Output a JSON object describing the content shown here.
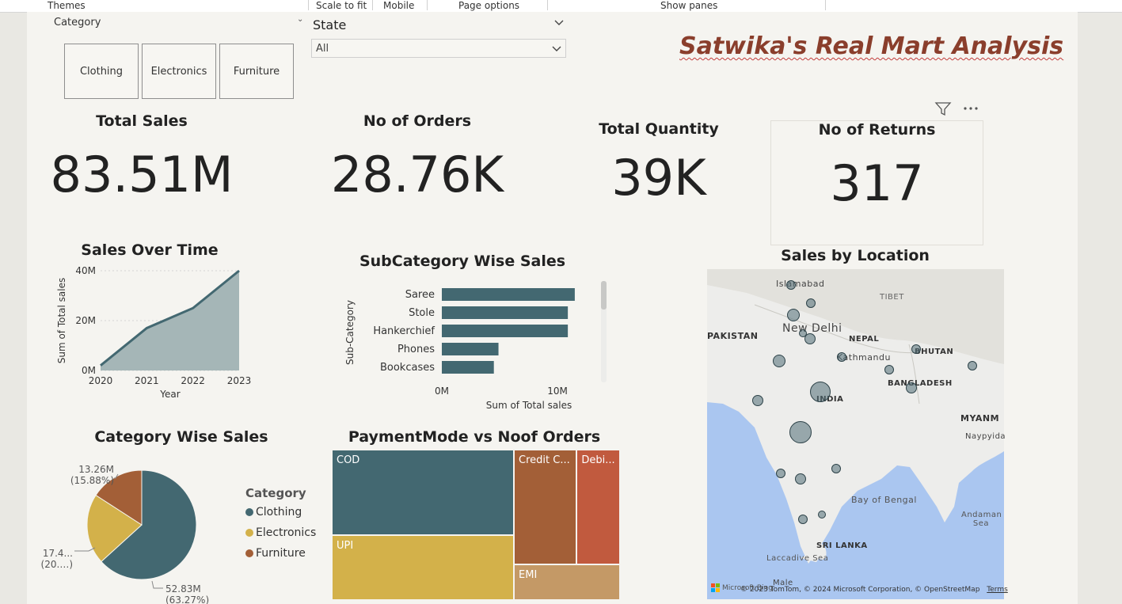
{
  "menubar": {
    "items": [
      "Themes",
      "Scale to fit",
      "Mobile",
      "Page options",
      "Show panes"
    ]
  },
  "slicers": {
    "category": {
      "title": "Category",
      "options": [
        "Clothing",
        "Electronics",
        "Furniture"
      ]
    },
    "state": {
      "title": "State",
      "value": "All"
    }
  },
  "report_title": "Satwika's Real Mart Analysis",
  "kpis": {
    "total_sales": {
      "title": "Total Sales",
      "value": "83.51M"
    },
    "no_of_orders": {
      "title": "No of Orders",
      "value": "28.76K"
    },
    "total_quantity": {
      "title": "Total Quantity",
      "value": "39K"
    },
    "no_of_returns": {
      "title": "No of Returns",
      "value": "317"
    }
  },
  "visual_header": {
    "icons": [
      "filter-icon",
      "more-options-icon"
    ]
  },
  "colors": {
    "teal": "#436871",
    "teal_area": "#a5b6b7",
    "mustard": "#d3b14a",
    "rust": "#a35f37",
    "red": "#c15a3e",
    "tan": "#c49966",
    "title_brown": "#8a3e2c"
  },
  "charts": {
    "sales_over_time": {
      "title": "Sales Over Time",
      "ylabel": "Sum of Total sales",
      "xlabel": "Year",
      "ticks_y": [
        "0M",
        "20M",
        "40M"
      ],
      "ticks_x": [
        "2020",
        "2021",
        "2022",
        "2023"
      ]
    },
    "subcategory": {
      "title": "SubCategory Wise Sales",
      "ylabel": "Sub-Category",
      "xlabel": "Sum of Total sales",
      "ticks_x": [
        "0M",
        "10M"
      ]
    },
    "category_pie": {
      "title": "Category Wise Sales",
      "legend_title": "Category",
      "labels": [
        {
          "value": "52.83M",
          "pct": "(63.27%)"
        },
        {
          "value": "17.4...",
          "pct": "(20.…)"
        },
        {
          "value": "13.26M",
          "pct": "(15.88%)"
        }
      ]
    },
    "payment_treemap": {
      "title": "PaymentMode vs Noof Orders"
    },
    "map": {
      "title": "Sales by Location",
      "place_labels": [
        "Islamabad",
        "TIBET",
        "PAKISTAN",
        "New Delhi",
        "NEPAL",
        "BHUTAN",
        "Kathmandu",
        "BANGLADESH",
        "INDIA",
        "MYANM",
        "Naypyida",
        "Bay of Bengal",
        "Andaman Sea",
        "SRI LANKA",
        "Laccadive Sea",
        "Male"
      ],
      "attribution": "© 2023 TomTom, © 2024 Microsoft Corporation, © OpenStreetMap",
      "terms": "Terms",
      "logo_text": "Microsoft Bing"
    }
  },
  "chart_data": [
    {
      "type": "area",
      "title": "Sales Over Time",
      "xlabel": "Year",
      "ylabel": "Sum of Total sales",
      "x": [
        "2020",
        "2021",
        "2022",
        "2023"
      ],
      "values": [
        2,
        17,
        25,
        40
      ],
      "unit": "M",
      "ylim": [
        0,
        40
      ]
    },
    {
      "type": "bar",
      "orientation": "horizontal",
      "title": "SubCategory Wise Sales",
      "xlabel": "Sum of Total sales",
      "ylabel": "Sub-Category",
      "categories": [
        "Saree",
        "Stole",
        "Hankerchief",
        "Phones",
        "Bookcases"
      ],
      "values": [
        11.5,
        10.9,
        10.9,
        4.9,
        4.5
      ],
      "unit": "M",
      "xlim": [
        0,
        12
      ]
    },
    {
      "type": "pie",
      "title": "Category Wise Sales",
      "categories": [
        "Clothing",
        "Electronics",
        "Furniture"
      ],
      "values": [
        52.83,
        17.42,
        13.26
      ],
      "percent": [
        63.27,
        20.85,
        15.88
      ],
      "unit": "M"
    },
    {
      "type": "treemap",
      "title": "PaymentMode vs Noof Orders",
      "categories": [
        "COD",
        "UPI",
        "Credit C...",
        "Debi...",
        "EMI"
      ],
      "values": [
        10.3,
        7.9,
        4.8,
        3.3,
        2.5
      ]
    }
  ]
}
